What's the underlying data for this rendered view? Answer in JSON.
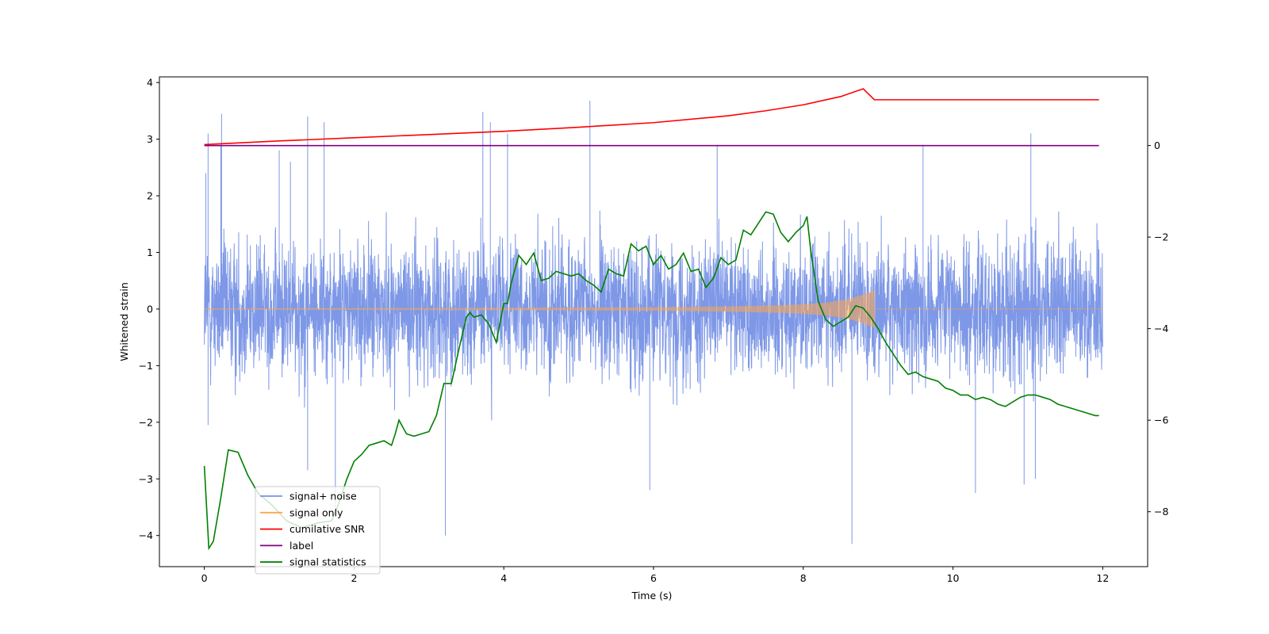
{
  "chart_data": {
    "type": "line",
    "title": "",
    "xlabel": "Time (s)",
    "ylabel": "Whitened strain",
    "y2label": "",
    "xlim": [
      -0.6,
      12.6
    ],
    "ylim": [
      -4.55,
      4.1
    ],
    "y2lim": [
      -9.2,
      1.5
    ],
    "xticks": [
      0,
      2,
      4,
      6,
      8,
      10,
      12
    ],
    "yticks": [
      -4,
      -3,
      -2,
      -1,
      0,
      1,
      2,
      3,
      4
    ],
    "y2ticks": [
      -8,
      -6,
      -4,
      -2,
      0
    ],
    "grid": false,
    "legend_position": "lower-left",
    "legend": [
      "signal+ noise",
      "signal only",
      "cumilative SNR",
      "label",
      "signal statistics"
    ],
    "series": [
      {
        "name": "signal+ noise",
        "axis": "left",
        "color": "#7792e6",
        "style": "dense noise band, 0 to 12 s",
        "typical_range": [
          -1.6,
          1.6
        ],
        "peak_highs": [
          {
            "x": 0.02,
            "y": 2.4
          },
          {
            "x": 0.05,
            "y": 3.1
          },
          {
            "x": 0.22,
            "y": 2.9
          },
          {
            "x": 0.23,
            "y": 3.45
          },
          {
            "x": 1.0,
            "y": 2.8
          },
          {
            "x": 1.15,
            "y": 2.6
          },
          {
            "x": 1.38,
            "y": 3.4
          },
          {
            "x": 1.6,
            "y": 3.3
          },
          {
            "x": 3.72,
            "y": 3.48
          },
          {
            "x": 3.82,
            "y": 3.3
          },
          {
            "x": 4.05,
            "y": 3.1
          },
          {
            "x": 5.15,
            "y": 3.68
          },
          {
            "x": 6.85,
            "y": 2.9
          },
          {
            "x": 9.6,
            "y": 2.9
          },
          {
            "x": 11.04,
            "y": 3.1
          }
        ],
        "peak_lows": [
          {
            "x": 0.05,
            "y": -2.05
          },
          {
            "x": 1.38,
            "y": -2.85
          },
          {
            "x": 1.75,
            "y": -3.5
          },
          {
            "x": 3.22,
            "y": -4.0
          },
          {
            "x": 5.95,
            "y": -3.2
          },
          {
            "x": 8.65,
            "y": -4.15
          },
          {
            "x": 10.3,
            "y": -3.25
          },
          {
            "x": 10.95,
            "y": -3.1
          },
          {
            "x": 11.1,
            "y": -3.0
          }
        ]
      },
      {
        "name": "signal only",
        "axis": "left",
        "color": "#ffa54a",
        "style": "chirp, growing envelope, ends at 8.95 s, zero after",
        "envelope": {
          "x": [
            0,
            4,
            6,
            7,
            7.8,
            8.3,
            8.6,
            8.8,
            8.95
          ],
          "amp": [
            0.01,
            0.02,
            0.03,
            0.045,
            0.07,
            0.11,
            0.17,
            0.25,
            0.33
          ]
        }
      },
      {
        "name": "cumilative SNR",
        "axis": "right",
        "color": "#ff0000",
        "x": [
          0,
          1,
          2,
          3,
          4,
          5,
          6,
          7,
          7.5,
          8,
          8.5,
          8.8,
          8.95,
          9.0,
          11.95
        ],
        "y": [
          0.02,
          0.1,
          0.17,
          0.24,
          0.31,
          0.4,
          0.5,
          0.65,
          0.76,
          0.89,
          1.07,
          1.24,
          1.0,
          1.0,
          1.0
        ]
      },
      {
        "name": "label",
        "axis": "right",
        "color": "#800080",
        "x": [
          0,
          11.95
        ],
        "y": [
          0,
          0
        ]
      },
      {
        "name": "signal statistics",
        "axis": "right",
        "color": "#008000",
        "x": [
          0,
          0.06,
          0.12,
          0.22,
          0.32,
          0.45,
          0.58,
          0.72,
          0.9,
          1.1,
          1.3,
          1.5,
          1.7,
          1.8,
          1.9,
          2.0,
          2.1,
          2.2,
          2.3,
          2.4,
          2.5,
          2.55,
          2.6,
          2.7,
          2.8,
          2.9,
          3.0,
          3.1,
          3.2,
          3.3,
          3.4,
          3.5,
          3.55,
          3.6,
          3.7,
          3.8,
          3.9,
          4.0,
          4.05,
          4.1,
          4.2,
          4.3,
          4.4,
          4.5,
          4.6,
          4.7,
          4.8,
          4.9,
          5.0,
          5.1,
          5.2,
          5.3,
          5.4,
          5.5,
          5.6,
          5.7,
          5.8,
          5.9,
          6.0,
          6.1,
          6.2,
          6.3,
          6.4,
          6.5,
          6.6,
          6.7,
          6.8,
          6.9,
          7.0,
          7.1,
          7.2,
          7.3,
          7.4,
          7.5,
          7.6,
          7.7,
          7.8,
          7.9,
          8.0,
          8.05,
          8.1,
          8.2,
          8.3,
          8.4,
          8.5,
          8.6,
          8.7,
          8.8,
          8.9,
          9.0,
          9.1,
          9.2,
          9.3,
          9.4,
          9.5,
          9.6,
          9.7,
          9.8,
          9.9,
          10.0,
          10.1,
          10.2,
          10.3,
          10.4,
          10.5,
          10.6,
          10.7,
          10.8,
          10.9,
          11.0,
          11.1,
          11.2,
          11.3,
          11.4,
          11.5,
          11.6,
          11.7,
          11.8,
          11.9,
          11.95
        ],
        "y": [
          -7.0,
          -8.8,
          -8.65,
          -7.7,
          -6.65,
          -6.7,
          -7.2,
          -7.6,
          -7.85,
          -8.2,
          -8.35,
          -8.25,
          -8.2,
          -7.8,
          -7.3,
          -6.9,
          -6.75,
          -6.55,
          -6.5,
          -6.45,
          -6.55,
          -6.3,
          -6.0,
          -6.3,
          -6.35,
          -6.3,
          -6.25,
          -5.9,
          -5.2,
          -5.2,
          -4.45,
          -3.75,
          -3.65,
          -3.75,
          -3.7,
          -3.9,
          -4.3,
          -3.45,
          -3.45,
          -3.0,
          -2.4,
          -2.6,
          -2.35,
          -2.95,
          -2.9,
          -2.75,
          -2.8,
          -2.85,
          -2.8,
          -2.95,
          -3.05,
          -3.2,
          -2.7,
          -2.8,
          -2.85,
          -2.15,
          -2.3,
          -2.2,
          -2.6,
          -2.4,
          -2.7,
          -2.6,
          -2.35,
          -2.75,
          -2.7,
          -3.1,
          -2.9,
          -2.45,
          -2.6,
          -2.5,
          -1.85,
          -1.95,
          -1.7,
          -1.45,
          -1.5,
          -1.9,
          -2.1,
          -1.9,
          -1.75,
          -1.55,
          -2.3,
          -3.4,
          -3.8,
          -3.95,
          -3.85,
          -3.75,
          -3.5,
          -3.55,
          -3.75,
          -4.0,
          -4.3,
          -4.55,
          -4.8,
          -5.0,
          -4.95,
          -5.05,
          -5.1,
          -5.15,
          -5.3,
          -5.35,
          -5.45,
          -5.45,
          -5.55,
          -5.5,
          -5.55,
          -5.65,
          -5.7,
          -5.6,
          -5.5,
          -5.45,
          -5.45,
          -5.5,
          -5.55,
          -5.65,
          -5.7,
          -5.75,
          -5.8,
          -5.85,
          -5.9,
          -5.9
        ]
      }
    ]
  }
}
